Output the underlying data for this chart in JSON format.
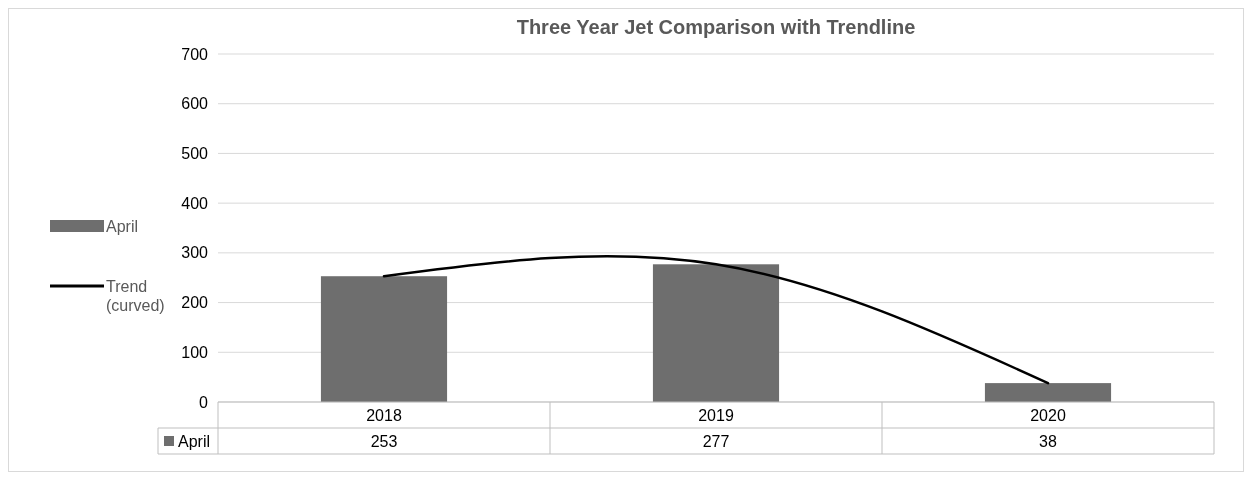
{
  "chart_data": {
    "type": "bar",
    "title": "Three Year Jet Comparison with Trendline",
    "categories": [
      "2018",
      "2019",
      "2020"
    ],
    "series": [
      {
        "name": "April",
        "color": "#6e6e6e",
        "values": [
          253,
          277,
          38
        ],
        "value_labels": [
          "253",
          "277",
          "38"
        ]
      },
      {
        "name": "Trend (curved)",
        "type": "line",
        "color": "#000000",
        "values": [
          253,
          277,
          38
        ]
      }
    ],
    "ylim": [
      0,
      700
    ],
    "yticks": [
      0,
      100,
      200,
      300,
      400,
      500,
      600,
      700
    ],
    "grid": "y",
    "legend": "left"
  }
}
